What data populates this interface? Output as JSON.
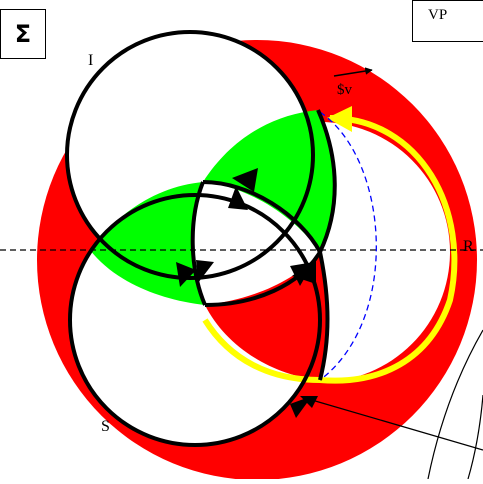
{
  "labels": {
    "sigma": "Σ",
    "vp": "VP",
    "i": "I",
    "r": "R",
    "s": "S",
    "sv": "$v"
  },
  "colors": {
    "red": "#ff0000",
    "green": "#00ff00",
    "yellow": "#ffff00",
    "blue_dash": "#0000ff",
    "black": "#000000",
    "white": "#ffffff"
  }
}
